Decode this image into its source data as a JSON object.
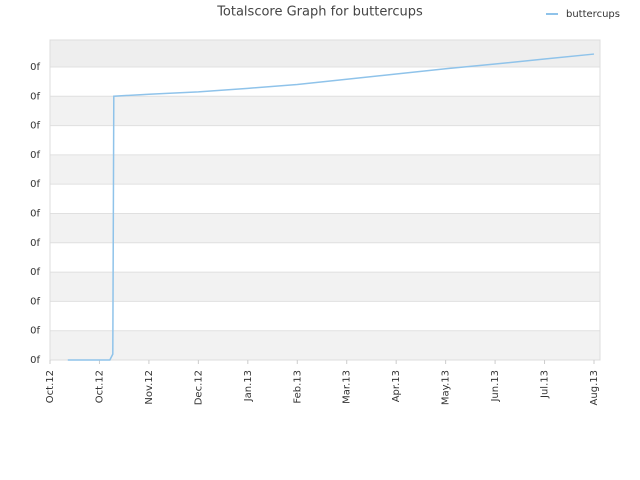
{
  "chart_data": {
    "type": "line",
    "title": "Totalscore Graph for buttercups",
    "series": [
      {
        "name": "buttercups",
        "color": "#8fc3ea",
        "x": [
          0.36,
          1.21,
          1.27,
          1.29,
          2,
          3,
          4,
          5,
          6,
          7,
          8,
          9,
          10,
          11
        ],
        "values": [
          0,
          0,
          0.2,
          9.0,
          9.07,
          9.15,
          9.27,
          9.4,
          9.58,
          9.76,
          9.94,
          10.1,
          10.27,
          10.44
        ]
      }
    ],
    "xlim": [
      0,
      11
    ],
    "xticks": [
      {
        "value": 0,
        "label": "Oct.12"
      },
      {
        "value": 1,
        "label": "Oct.12"
      },
      {
        "value": 2,
        "label": "Nov.12"
      },
      {
        "value": 3,
        "label": "Dec.12"
      },
      {
        "value": 4,
        "label": "Jan.13"
      },
      {
        "value": 5,
        "label": "Feb.13"
      },
      {
        "value": 6,
        "label": "Mar.13"
      },
      {
        "value": 7,
        "label": "Apr.13"
      },
      {
        "value": 8,
        "label": "May.13"
      },
      {
        "value": 9,
        "label": "Jun.13"
      },
      {
        "value": 10,
        "label": "Jul.13"
      },
      {
        "value": 11,
        "label": "Aug.13"
      }
    ],
    "ylim": [
      0,
      10.92
    ],
    "yticks": [
      {
        "value": 0,
        "label": "0f"
      },
      {
        "value": 1,
        "label": "0f"
      },
      {
        "value": 2,
        "label": "0f"
      },
      {
        "value": 3,
        "label": "0f"
      },
      {
        "value": 4,
        "label": "0f"
      },
      {
        "value": 5,
        "label": "0f"
      },
      {
        "value": 6,
        "label": "0f"
      },
      {
        "value": 7,
        "label": "0f"
      },
      {
        "value": 8,
        "label": "0f"
      },
      {
        "value": 9,
        "label": "0f"
      },
      {
        "value": 10,
        "label": "0f"
      }
    ],
    "grid": true,
    "legend": "top-right"
  }
}
